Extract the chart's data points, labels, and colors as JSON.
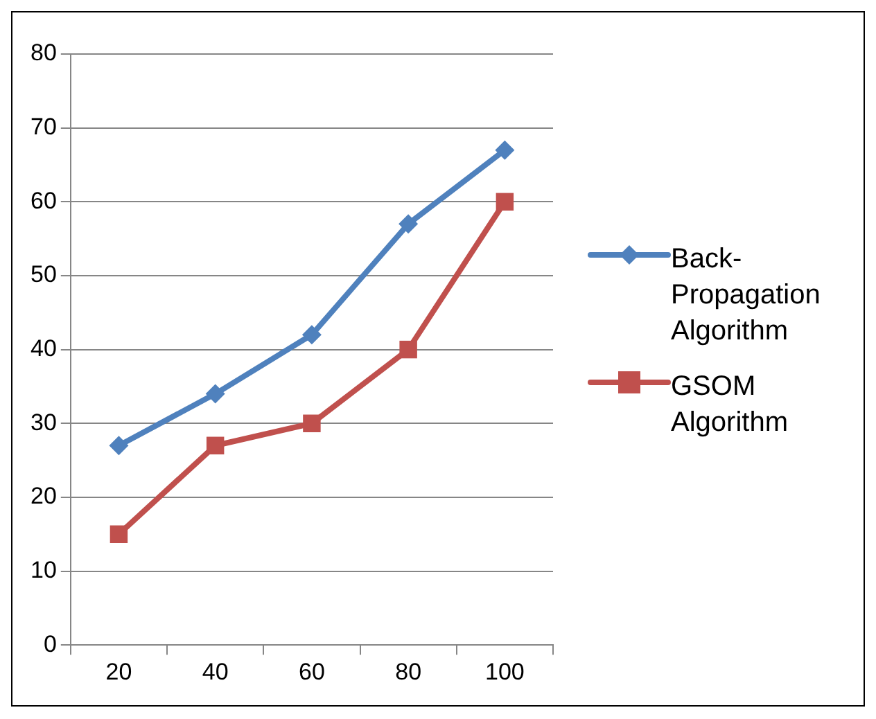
{
  "chart_data": {
    "type": "line",
    "categories": [
      "20",
      "40",
      "60",
      "80",
      "100"
    ],
    "series": [
      {
        "name": "Back-Propagation Algorithm",
        "color": "#4f81bd",
        "marker": "diamond",
        "values": [
          27,
          34,
          42,
          57,
          67
        ]
      },
      {
        "name": "GSOM Algorithm",
        "color": "#c0504d",
        "marker": "square",
        "values": [
          15,
          27,
          30,
          40,
          60
        ]
      }
    ],
    "ylim": [
      0,
      80
    ],
    "yticks": [
      0,
      10,
      20,
      30,
      40,
      50,
      60,
      70,
      80
    ],
    "grid": "y",
    "legend": "right",
    "line_style": "solid"
  }
}
